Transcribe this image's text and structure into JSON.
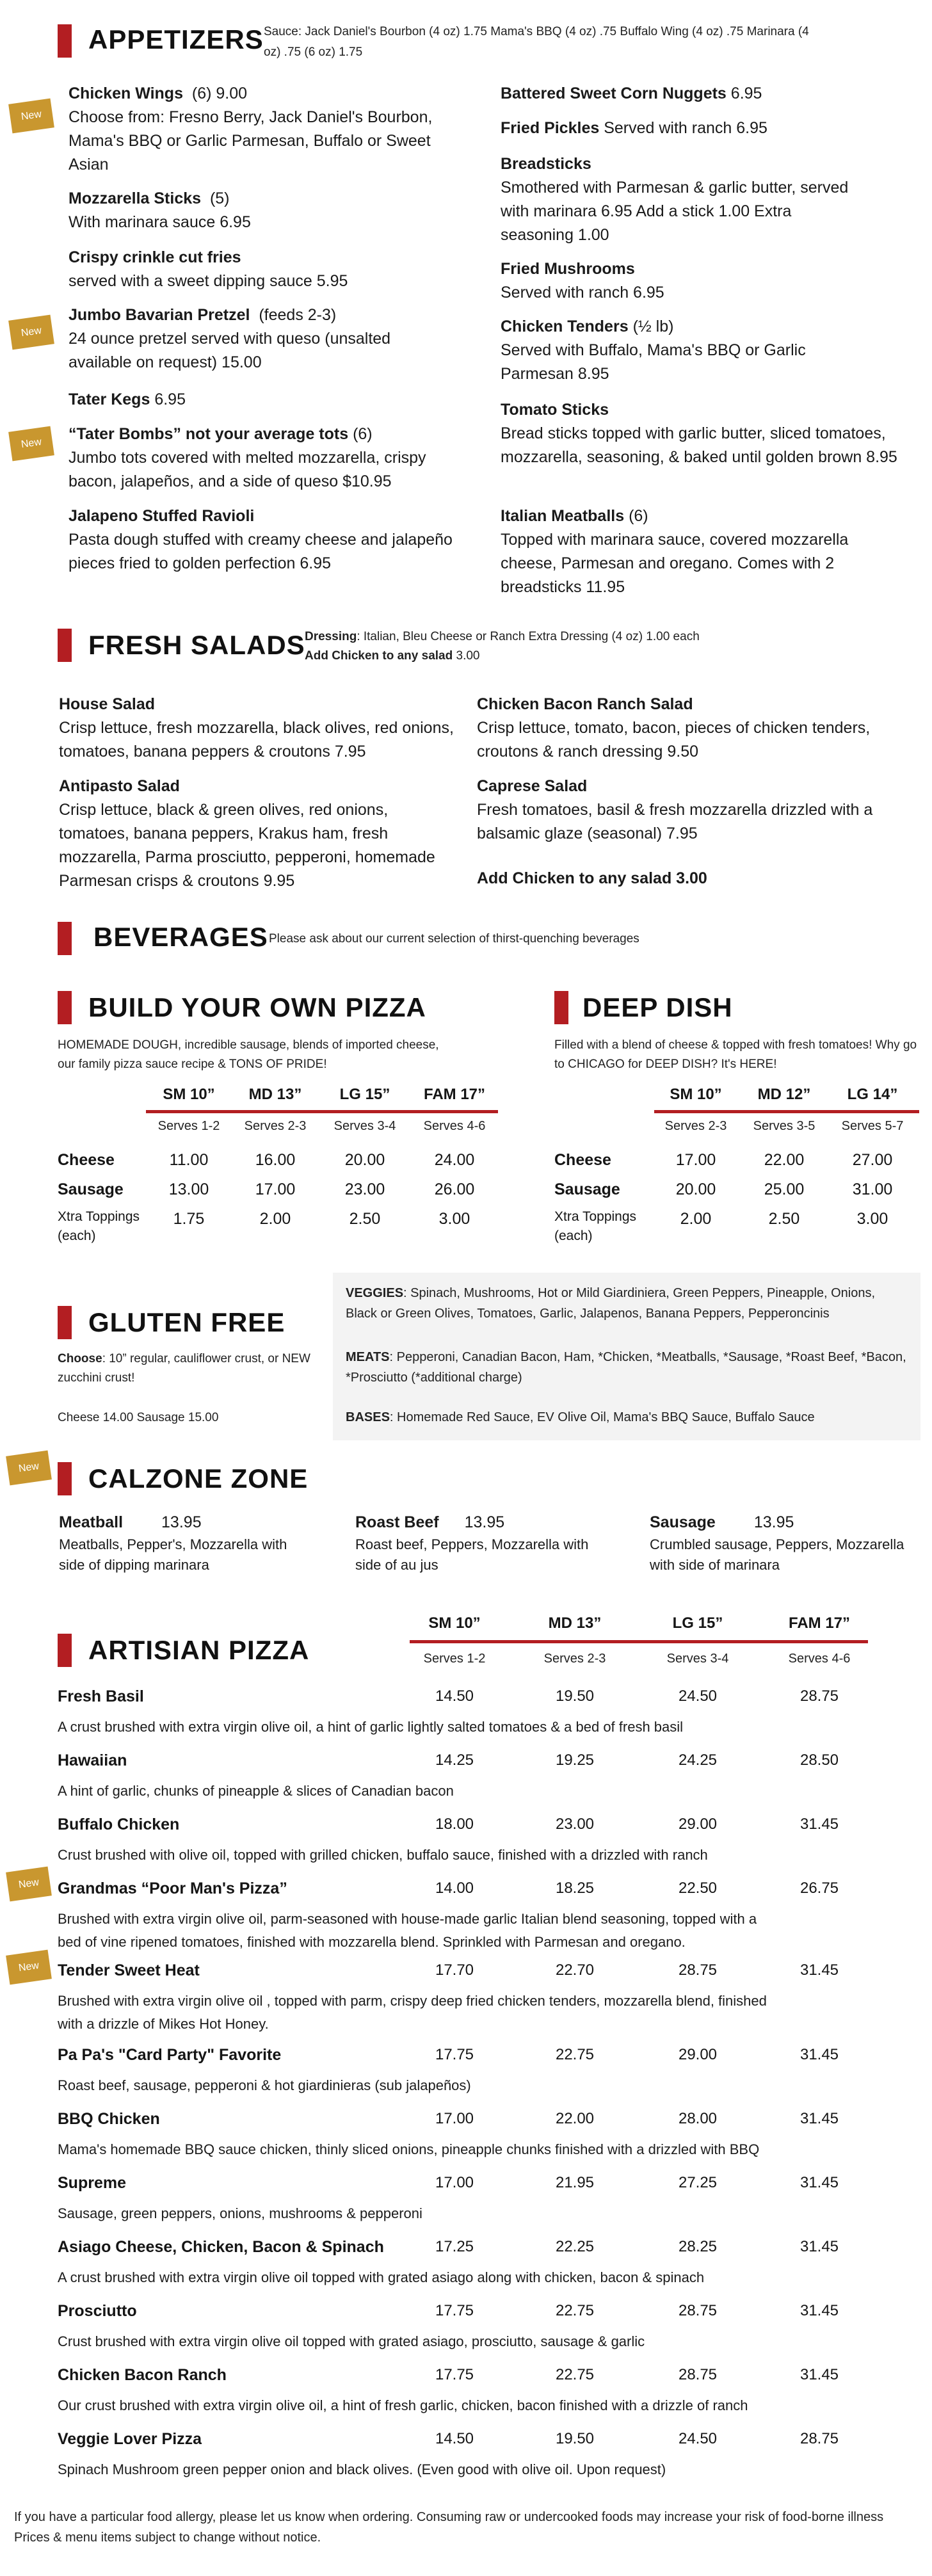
{
  "appetizers": {
    "title": "APPETIZERS",
    "sauce_note": "Sauce: Jack Daniel's Bourbon (4 oz) 1.75 Mama's BBQ (4 oz) .75 Buffalo Wing (4 oz) .75 Marinara (4 oz) .75  (6 oz) 1.75",
    "badge": "New",
    "left": [
      {
        "name": "Chicken Wings",
        "qty": "(6) 9.00",
        "desc": "Choose from: Fresno Berry, Jack Daniel's Bourbon, Mama's BBQ or Garlic Parmesan, Buffalo or Sweet Asian"
      },
      {
        "name": "Mozzarella Sticks",
        "qty": "(5)",
        "desc": "With marinara sauce 6.95"
      },
      {
        "name": "Crispy crinkle cut fries",
        "qty": "",
        "desc": "served with a sweet dipping sauce 5.95"
      },
      {
        "name": "Jumbo Bavarian Pretzel",
        "qty": "(feeds 2-3)",
        "desc": "24 ounce pretzel served with queso (unsalted available on request)  15.00"
      },
      {
        "name": "Tater Kegs",
        "qty": "6.95",
        "desc": ""
      },
      {
        "name": "“Tater Bombs” not your average tots",
        "qty": "(6)",
        "desc": "Jumbo tots covered with melted mozzarella, crispy bacon, jalapeños, and a side of queso $10.95"
      },
      {
        "name": "Jalapeno Stuffed Ravioli",
        "qty": "",
        "desc": "Pasta dough stuffed with creamy cheese and jalapeño pieces fried to golden perfection 6.95"
      }
    ],
    "right": [
      {
        "name": "Battered Sweet Corn Nuggets",
        "qty": "6.95",
        "desc": ""
      },
      {
        "name": "Fried Pickles",
        "qty": "Served with ranch 6.95",
        "desc": ""
      },
      {
        "name": "Breadsticks",
        "qty": "",
        "desc": "Smothered with Parmesan & garlic butter, served with marinara 6.95 Add a stick 1.00  Extra seasoning 1.00"
      },
      {
        "name": "Fried Mushrooms",
        "qty": "",
        "desc": "Served with ranch 6.95"
      },
      {
        "name": "Chicken Tenders",
        "qty": "(½ lb)",
        "desc": "Served with Buffalo, Mama's BBQ or Garlic Parmesan 8.95"
      },
      {
        "name": "Tomato Sticks",
        "qty": "",
        "desc": "Bread sticks topped with garlic butter, sliced tomatoes, mozzarella, seasoning, & baked until golden brown 8.95"
      },
      {
        "name": "Italian Meatballs",
        "qty": "(6)",
        "desc": "Topped with marinara sauce, covered mozzarella cheese, Parmesan and oregano. Comes with 2 breadsticks 11.95"
      }
    ]
  },
  "salads": {
    "title": "FRESH SALADS",
    "dressing_label": "Dressing",
    "dressing_text": ": Italian, Bleu Cheese or Ranch   Extra Dressing (4 oz) 1.00 each",
    "add_chicken_label": "Add Chicken to any salad",
    "add_chicken_price": " 3.00",
    "items": [
      {
        "name": "House Salad",
        "desc": "Crisp lettuce, fresh mozzarella, black olives, red onions, tomatoes, banana peppers & croutons 7.95"
      },
      {
        "name": "Chicken Bacon Ranch Salad",
        "desc": "Crisp lettuce,  tomato, bacon, pieces of chicken tenders, croutons & ranch dressing 9.50"
      },
      {
        "name": "Antipasto Salad",
        "desc": "Crisp lettuce, black & green olives, red onions, tomatoes, banana peppers, Krakus ham, fresh mozzarella, Parma prosciutto, pepperoni, homemade Parmesan crisps & croutons 9.95"
      },
      {
        "name": "Caprese Salad",
        "desc": "Fresh tomatoes, basil & fresh mozzarella drizzled with a balsamic glaze (seasonal) 7.95"
      }
    ],
    "add_chicken_bottom": "Add Chicken to any salad 3.00"
  },
  "beverages": {
    "title": "BEVERAGES",
    "note": "Please ask about our current selection of thirst-quenching beverages"
  },
  "byo": {
    "title": "BUILD YOUR OWN PIZZA",
    "desc": "HOMEMADE DOUGH, incredible sausage, blends of imported cheese, our family pizza sauce recipe & TONS OF PRIDE!",
    "sizes": [
      "SM 10”",
      "MD 13”",
      "LG 15”",
      "FAM 17”"
    ],
    "serves": [
      "Serves 1-2",
      "Serves 2-3",
      "Serves 3-4",
      "Serves 4-6"
    ],
    "rows": [
      {
        "label": "Cheese",
        "prices": [
          "11.00",
          "16.00",
          "20.00",
          "24.00"
        ]
      },
      {
        "label": "Sausage",
        "prices": [
          "13.00",
          "17.00",
          "23.00",
          "26.00"
        ]
      },
      {
        "label": "Xtra Toppings (each)",
        "prices": [
          "1.75",
          "2.00",
          "2.50",
          "3.00"
        ]
      }
    ]
  },
  "deep": {
    "title": "DEEP DISH",
    "desc": "Filled with a blend of cheese & topped with fresh tomatoes! Why go to CHICAGO for DEEP DISH? It's HERE!",
    "sizes": [
      "SM 10”",
      "MD 12”",
      "LG 14”"
    ],
    "serves": [
      "Serves 2-3",
      "Serves 3-5",
      "Serves 5-7"
    ],
    "rows": [
      {
        "label": "Cheese",
        "prices": [
          "17.00",
          "22.00",
          "27.00"
        ]
      },
      {
        "label": "Sausage",
        "prices": [
          "20.00",
          "25.00",
          "31.00"
        ]
      },
      {
        "label": "Xtra Toppings (each)",
        "prices": [
          "2.00",
          "2.50",
          "3.00"
        ]
      }
    ]
  },
  "gluten": {
    "title": "GLUTEN FREE",
    "choose_label": "Choose",
    "choose_text": ": 10” regular, cauliflower crust, or NEW zucchini crust!",
    "prices": "Cheese 14.00 Sausage 15.00",
    "veggies_label": "VEGGIES",
    "veggies_text": ": Spinach, Mushrooms, Hot or Mild Giardiniera, Green Peppers, Pineapple, Onions, Black or Green Olives, Tomatoes, Garlic, Jalapenos, Banana Peppers, Pepperoncinis",
    "meats_label": "MEATS",
    "meats_text": ": Pepperoni, Canadian Bacon, Ham, *Chicken, *Meatballs, *Sausage, *Roast Beef, *Bacon, *Prosciutto (*additional charge)",
    "bases_label": "BASES",
    "bases_text": ": Homemade Red Sauce, EV Olive Oil, Mama's BBQ Sauce, Buffalo Sauce"
  },
  "calzone": {
    "title": "CALZONE ZONE",
    "badge": "New",
    "items": [
      {
        "name": "Meatball",
        "price": "13.95",
        "desc": "Meatballs, Pepper's, Mozzarella with side of dipping marinara"
      },
      {
        "name": "Roast Beef",
        "price": "13.95",
        "desc": "Roast beef, Peppers, Mozzarella with side of au jus"
      },
      {
        "name": "Sausage",
        "price": "13.95",
        "desc": "Crumbled sausage, Peppers, Mozzarella with side of marinara"
      }
    ]
  },
  "artisan": {
    "title": "ARTISIAN PIZZA",
    "sizes": [
      "SM 10”",
      "MD 13”",
      "LG 15”",
      "FAM 17”"
    ],
    "serves": [
      "Serves 1-2",
      "Serves 2-3",
      "Serves 3-4",
      "Serves 4-6"
    ],
    "badge": "New",
    "items": [
      {
        "name": "Fresh Basil",
        "prices": [
          "14.50",
          "19.50",
          "24.50",
          "28.75"
        ],
        "desc": [
          "A crust brushed with extra virgin olive oil, a hint of garlic lightly salted tomatoes & a bed of fresh basil"
        ]
      },
      {
        "name": "Hawaiian",
        "prices": [
          "14.25",
          "19.25",
          "24.25",
          "28.50"
        ],
        "desc": [
          "A hint of garlic, chunks of pineapple & slices of Canadian bacon"
        ]
      },
      {
        "name": "Buffalo Chicken",
        "prices": [
          "18.00",
          "23.00",
          "29.00",
          "31.45"
        ],
        "desc": [
          "Crust brushed with olive oil, topped with grilled chicken, buffalo sauce, finished with a drizzled with ranch"
        ]
      },
      {
        "name": "Grandmas “Poor Man's Pizza”",
        "prices": [
          "14.00",
          "18.25",
          "22.50",
          "26.75"
        ],
        "desc": [
          "Brushed with extra virgin olive oil, parm-seasoned with house-made garlic Italian blend seasoning, topped with a",
          "bed of vine ripened tomatoes, finished with mozzarella blend. Sprinkled with Parmesan and oregano."
        ]
      },
      {
        "name": "Tender Sweet Heat",
        "prices": [
          "17.70",
          "22.70",
          "28.75",
          "31.45"
        ],
        "desc": [
          "Brushed with extra virgin olive oil , topped with parm, crispy deep fried chicken tenders, mozzarella blend, finished",
          "with a drizzle of Mikes Hot Honey."
        ]
      },
      {
        "name": "Pa Pa's \"Card Party\" Favorite",
        "prices": [
          "17.75",
          "22.75",
          "29.00",
          "31.45"
        ],
        "desc": [
          "Roast beef, sausage, pepperoni & hot giardinieras (sub jalapeños)"
        ]
      },
      {
        "name": "BBQ Chicken",
        "prices": [
          "17.00",
          "22.00",
          "28.00",
          "31.45"
        ],
        "desc": [
          "Mama's homemade BBQ sauce chicken, thinly sliced onions, pineapple chunks finished with a drizzled with BBQ"
        ]
      },
      {
        "name": "Supreme",
        "prices": [
          "17.00",
          "21.95",
          "27.25",
          "31.45"
        ],
        "desc": [
          "Sausage, green peppers, onions, mushrooms & pepperoni"
        ]
      },
      {
        "name": "Asiago Cheese, Chicken, Bacon & Spinach",
        "prices": [
          "17.25",
          "22.25",
          "28.25",
          "31.45"
        ],
        "desc": [
          "A crust brushed with extra virgin olive oil topped with grated asiago along with chicken, bacon & spinach"
        ]
      },
      {
        "name": "Prosciutto",
        "prices": [
          "17.75",
          "22.75",
          "28.75",
          "31.45"
        ],
        "desc": [
          "Crust brushed with extra virgin olive oil topped with grated asiago, prosciutto, sausage & garlic"
        ]
      },
      {
        "name": "Chicken Bacon Ranch",
        "prices": [
          "17.75",
          "22.75",
          "28.75",
          "31.45"
        ],
        "desc": [
          "Our crust brushed with extra virgin olive oil, a hint of fresh garlic, chicken, bacon finished with a drizzle of ranch"
        ]
      },
      {
        "name": "Veggie Lover Pizza",
        "prices": [
          "14.50",
          "19.50",
          "24.50",
          "28.75"
        ],
        "desc": [
          "Spinach Mushroom green pepper onion and black olives. (Even good with olive oil. Upon request)"
        ]
      }
    ]
  },
  "footer": "If you have a particular food allergy, please let us know when ordering. Consuming raw or undercooked foods may increase your risk of food-borne illness Prices & menu items subject to change without notice.",
  "colors": {
    "accent": "#b31e22",
    "badge": "#c9972f",
    "gf_box": "#f3f3f3"
  }
}
